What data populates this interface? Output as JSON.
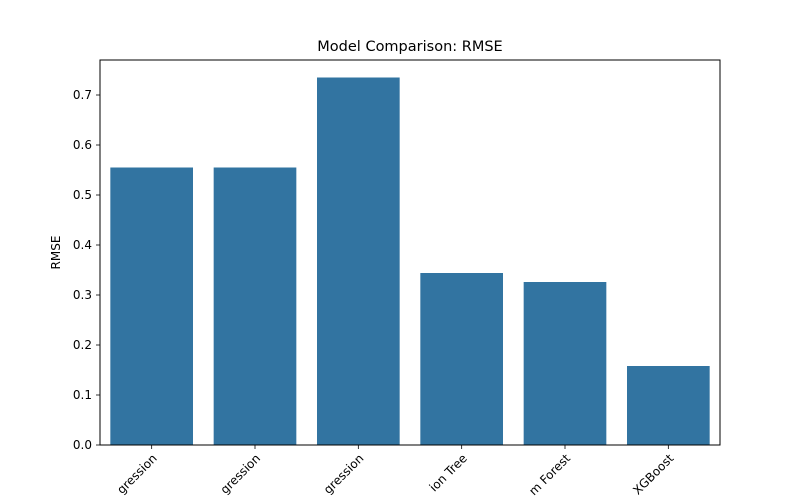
{
  "chart_data": {
    "type": "bar",
    "title": "Model Comparison: RMSE",
    "xlabel": "",
    "ylabel": "RMSE",
    "categories": [
      "Linear Regression",
      "Ridge Regression",
      "Lasso Regression",
      "Decision Tree",
      "Random Forest",
      "XGBoost"
    ],
    "tick_labels_visible": [
      "gression",
      "gression",
      "gression",
      "ion Tree",
      "m Forest",
      "XGBoost"
    ],
    "values": [
      0.555,
      0.555,
      0.735,
      0.344,
      0.326,
      0.158
    ],
    "ylim": [
      0,
      0.77
    ],
    "yticks": [
      0.0,
      0.1,
      0.2,
      0.3,
      0.4,
      0.5,
      0.6,
      0.7
    ],
    "ytick_labels": [
      "0.0",
      "0.1",
      "0.2",
      "0.3",
      "0.4",
      "0.5",
      "0.6",
      "0.7"
    ],
    "grid": false,
    "bar_color": "#3274a1"
  }
}
